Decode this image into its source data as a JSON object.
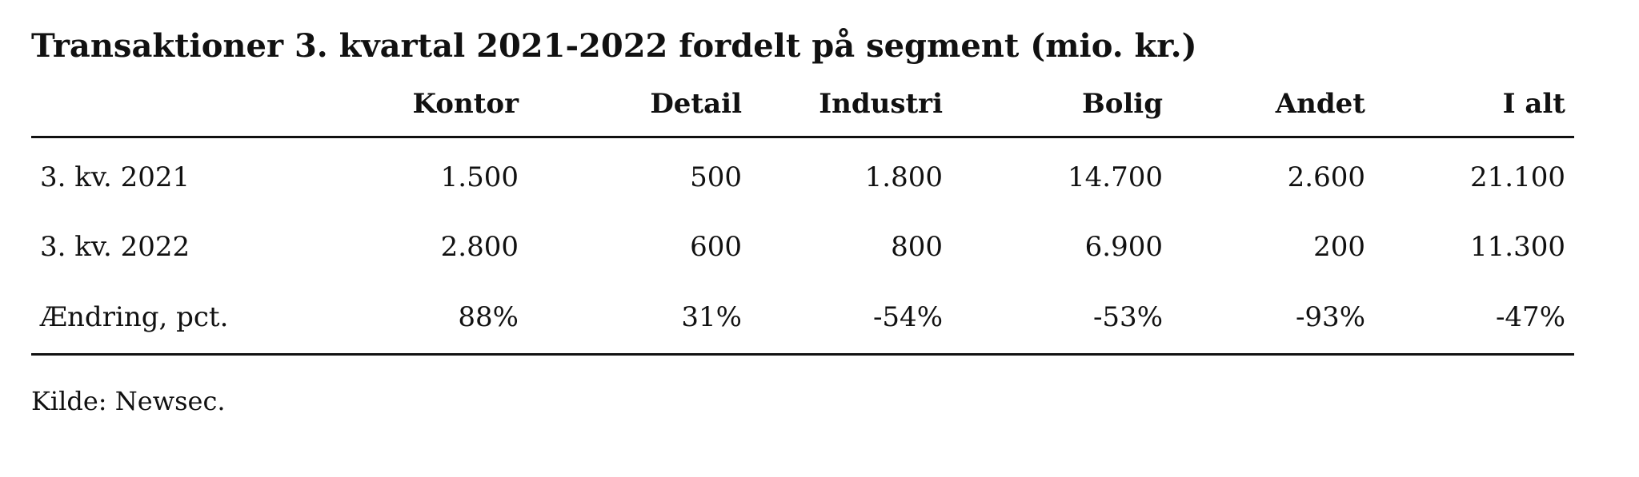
{
  "title": "Transaktioner 3. kvartal 2021-2022 fordelt på segment (mio. kr.)",
  "table": {
    "header": [
      "",
      "Kontor",
      "Detail",
      "Industri",
      "Bolig",
      "Andet",
      "I alt"
    ],
    "rows": [
      [
        "3. kv. 2021",
        "1.500",
        "500",
        "1.800",
        "14.700",
        "2.600",
        "21.100"
      ],
      [
        "3. kv. 2022",
        "2.800",
        "600",
        "800",
        "6.900",
        "200",
        "11.300"
      ],
      [
        "Ændring, pct.",
        "88%",
        "31%",
        "-54%",
        "-53%",
        "-93%",
        "-47%"
      ]
    ]
  },
  "source": "Kilde: Newsec."
}
